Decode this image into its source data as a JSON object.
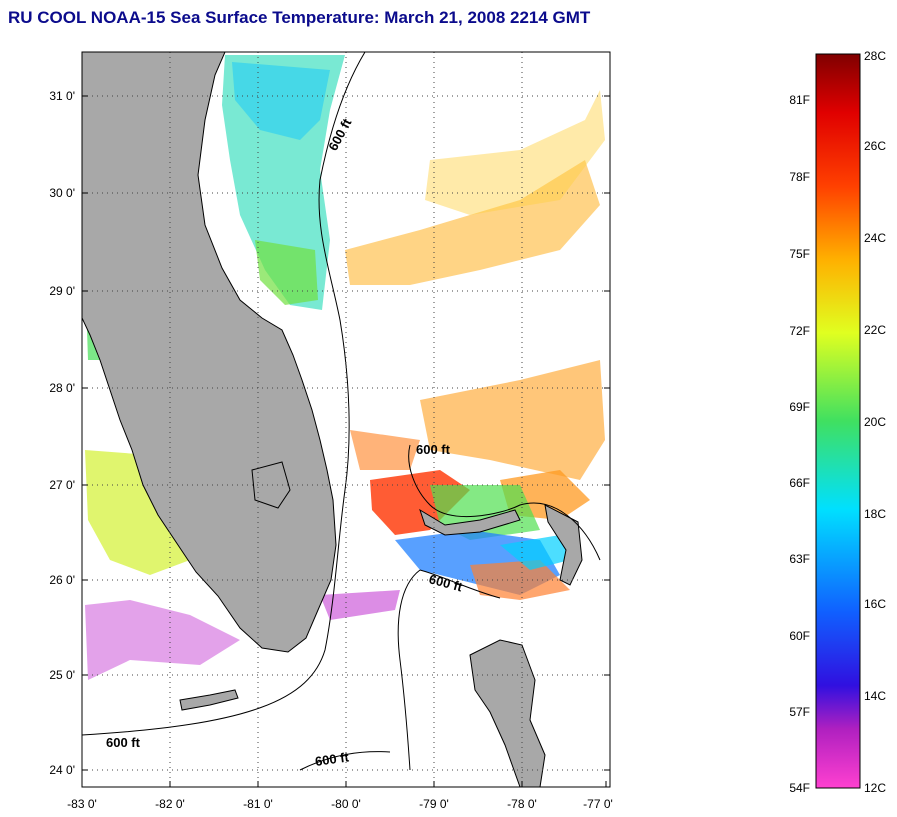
{
  "title": "RU COOL  NOAA-15  Sea Surface Temperature:  March 21, 2008 2214 GMT",
  "lat_ticks": [
    "31 0'",
    "30 0'",
    "29 0'",
    "28 0'",
    "27 0'",
    "26 0'",
    "25 0'",
    "24 0'"
  ],
  "lon_ticks": [
    "-83 0'",
    "-82 0'",
    "-81 0'",
    "-80 0'",
    "-79 0'",
    "-78 0'",
    "-77 0'"
  ],
  "contour_label": "600 ft",
  "colorbar": {
    "fahrenheit_labels": [
      "81F",
      "78F",
      "75F",
      "72F",
      "69F",
      "66F",
      "63F",
      "60F",
      "57F",
      "54F"
    ],
    "celsius_labels": [
      "28C",
      "26C",
      "24C",
      "22C",
      "20C",
      "18C",
      "16C",
      "14C",
      "12C"
    ],
    "colors": [
      "#ff40d0",
      "#b020c0",
      "#3010e0",
      "#1060ff",
      "#00e0ff",
      "#40e060",
      "#e0ff20",
      "#ffb000",
      "#ff4000",
      "#e00000",
      "#800000"
    ]
  },
  "colors": {
    "land": "#a8a8a8",
    "title": "#0b0b8c"
  }
}
